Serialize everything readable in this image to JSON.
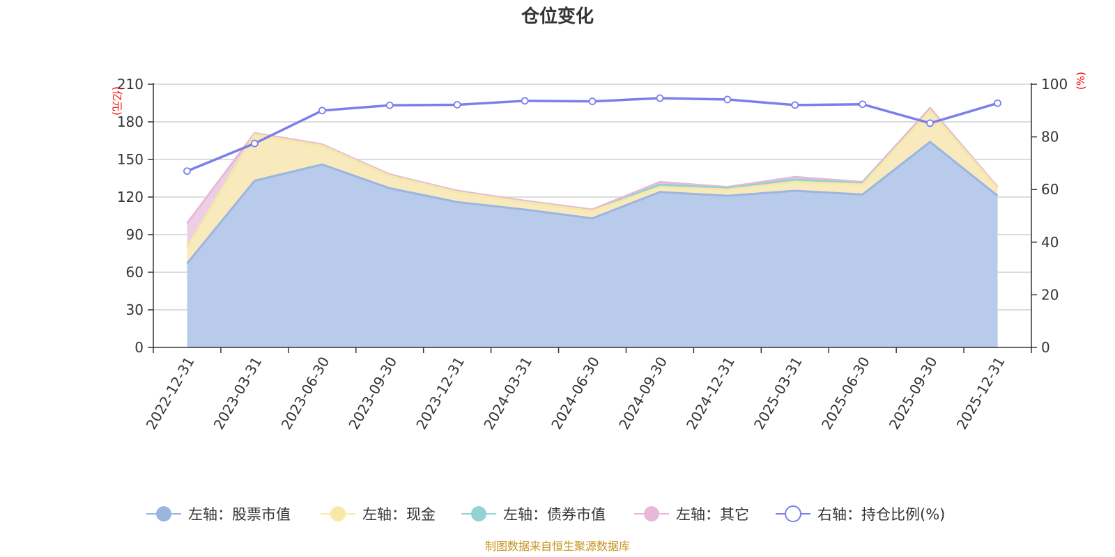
{
  "chart_data": {
    "type": "area",
    "title": "仓位变化",
    "categories": [
      "2022-12-31",
      "2023-03-31",
      "2023-06-30",
      "2023-09-30",
      "2023-12-31",
      "2024-03-31",
      "2024-06-30",
      "2024-09-30",
      "2024-12-31",
      "2025-03-31",
      "2025-06-30",
      "2025-09-30",
      "2025-12-31"
    ],
    "left_axis": {
      "unit": "(亿元)",
      "ylim": [
        0,
        210
      ],
      "ticks": [
        "0",
        "30",
        "60",
        "90",
        "120",
        "150",
        "180",
        "210"
      ]
    },
    "right_axis": {
      "unit": "(%)",
      "ylim": [
        0,
        100
      ],
      "ticks": [
        "0",
        "20",
        "40",
        "60",
        "80",
        "100"
      ]
    },
    "stacked_series": [
      {
        "name": "左轴：股票市值",
        "color": "#9ab6e0",
        "fill": "#b8cbea",
        "values": [
          67,
          133,
          146,
          127,
          116,
          110,
          103,
          124,
          121,
          125,
          122,
          164,
          121
        ]
      },
      {
        "name": "左轴：现金",
        "color": "#f8e8a6",
        "fill": "#f8eabc",
        "values": [
          13,
          37,
          15,
          10,
          8,
          6,
          6,
          4,
          5,
          7,
          8,
          25,
          6
        ]
      },
      {
        "name": "左轴：债券市值",
        "color": "#93d3d3",
        "fill": "#b0dfdc",
        "values": [
          0,
          0,
          0,
          0,
          0,
          0,
          0,
          2,
          1,
          2,
          1,
          0,
          0
        ]
      },
      {
        "name": "左轴：其它",
        "color": "#e8b8d9",
        "fill": "#eccfe4",
        "values": [
          19,
          1,
          1,
          1,
          1,
          1,
          1,
          2,
          1,
          2,
          1,
          2,
          1
        ]
      }
    ],
    "line_series": {
      "name": "右轴：持仓比例(%)",
      "color": "#7b7fea",
      "values": [
        67,
        77.5,
        90,
        92,
        92.2,
        93.7,
        93.5,
        94.7,
        94.2,
        92.1,
        92.4,
        85.2,
        92.8
      ]
    },
    "grid": true,
    "legend_position": "bottom"
  },
  "source_text": "制图数据来自恒生聚源数据库"
}
